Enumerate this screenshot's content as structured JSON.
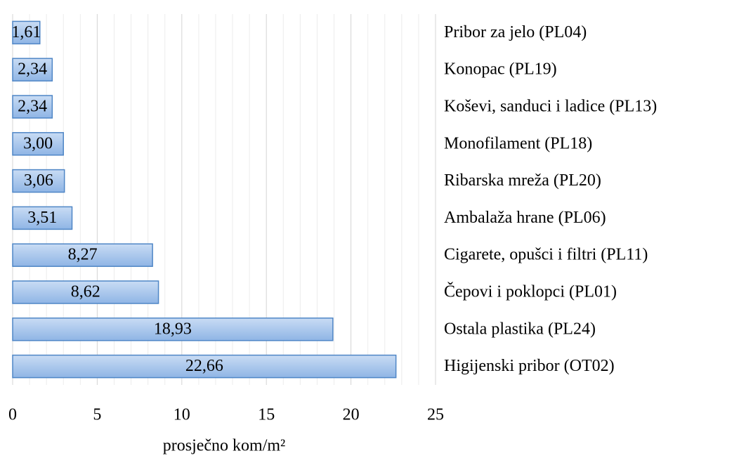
{
  "chart_data": {
    "type": "bar",
    "orientation": "horizontal",
    "x_label": "prosječno kom/m²",
    "categories": [
      "Pribor za jelo (PL04)",
      "Konopac (PL19)",
      "Koševi, sanduci i ladice (PL13)",
      "Monofilament (PL18)",
      "Ribarska mreža (PL20)",
      "Ambalaža hrane (PL06)",
      "Cigarete, opušci i filtri (PL11)",
      "Čepovi i poklopci (PL01)",
      "Ostala plastika (PL24)",
      "Higijenski pribor (OT02)"
    ],
    "values": [
      1.61,
      2.34,
      2.34,
      3.0,
      3.06,
      3.51,
      8.27,
      8.62,
      18.93,
      22.66
    ],
    "value_labels": [
      "1,61",
      "2,34",
      "2,34",
      "3,00",
      "3,06",
      "3,51",
      "8,27",
      "8,62",
      "18,93",
      "22,66"
    ],
    "color": "#9dc0ea",
    "edge_color": "#4f86c6",
    "xlim": [
      0,
      25
    ],
    "xticks": [
      0,
      5,
      10,
      15,
      20,
      25
    ],
    "minor_xticks": [
      1,
      2,
      3,
      4,
      6,
      7,
      8,
      9,
      11,
      12,
      13,
      14,
      16,
      17,
      18,
      19,
      21,
      22,
      23,
      24
    ],
    "grid": true
  }
}
